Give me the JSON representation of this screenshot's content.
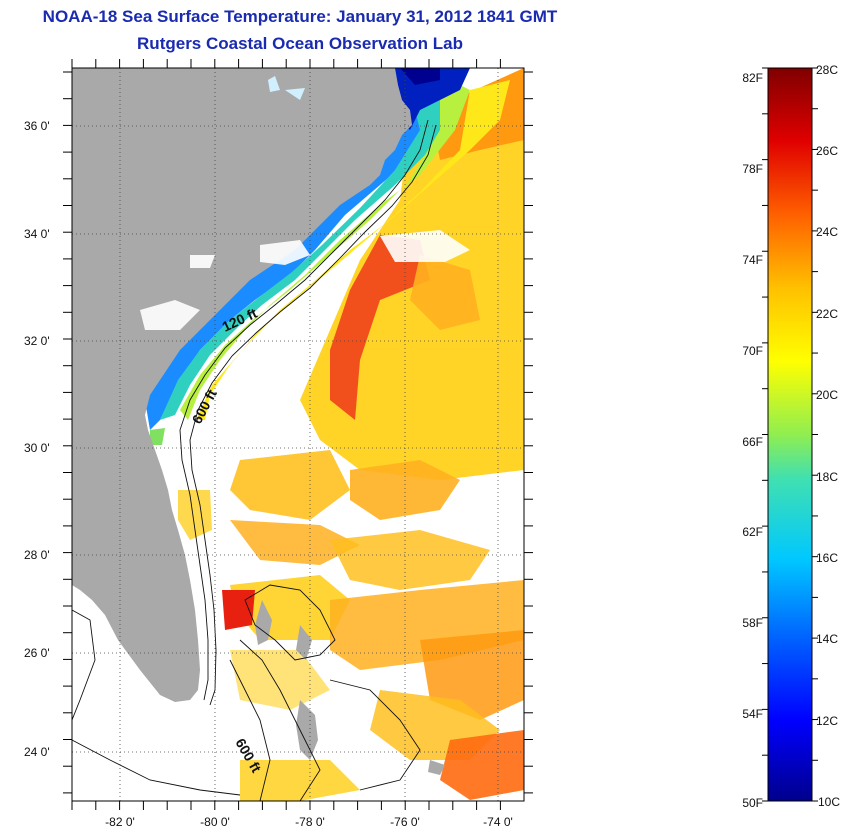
{
  "title": "NOAA-18 Sea Surface Temperature:  January 31, 2012 1841 GMT",
  "subtitle": "Rutgers Coastal Ocean Observation Lab",
  "map": {
    "lat_ticks": [
      "36 0'",
      "34 0'",
      "32 0'",
      "30 0'",
      "28 0'",
      "26 0'",
      "24 0'"
    ],
    "lon_ticks": [
      "-82 0'",
      "-80 0'",
      "-78 0'",
      "-76 0'",
      "-74 0'"
    ],
    "contour_labels": [
      "120 ft",
      "600 ft",
      "600 ft"
    ],
    "colors": {
      "land": "#a9a9a9",
      "cloud": "#ffffff"
    }
  },
  "colorbar": {
    "fahrenheit_labels": [
      "82F",
      "78F",
      "74F",
      "70F",
      "66F",
      "62F",
      "58F",
      "54F",
      "50F"
    ],
    "celsius_labels": [
      "28C",
      "26C",
      "24C",
      "22C",
      "20C",
      "18C",
      "16C",
      "14C",
      "12C",
      "10C"
    ],
    "min_c": 10,
    "max_c": 28
  }
}
